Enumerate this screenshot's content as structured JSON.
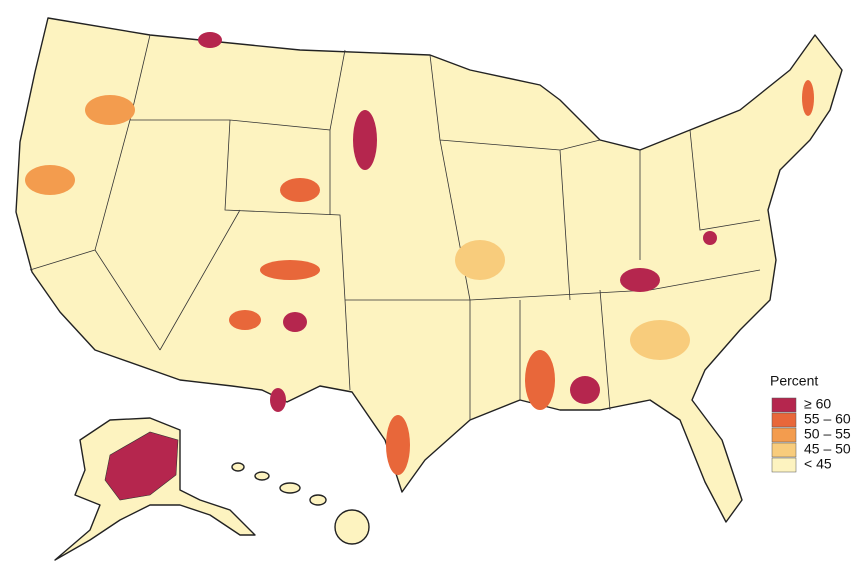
{
  "legend": {
    "title": "Percent",
    "items": [
      {
        "label": "≥ 60",
        "color": "#b5264e"
      },
      {
        "label": "55 – 60",
        "color": "#e8673a"
      },
      {
        "label": "50 – 55",
        "color": "#f39c4e"
      },
      {
        "label": "45 – 50",
        "color": "#f8cc7c"
      },
      {
        "label": "< 45",
        "color": "#fdf3c0"
      }
    ]
  }
}
